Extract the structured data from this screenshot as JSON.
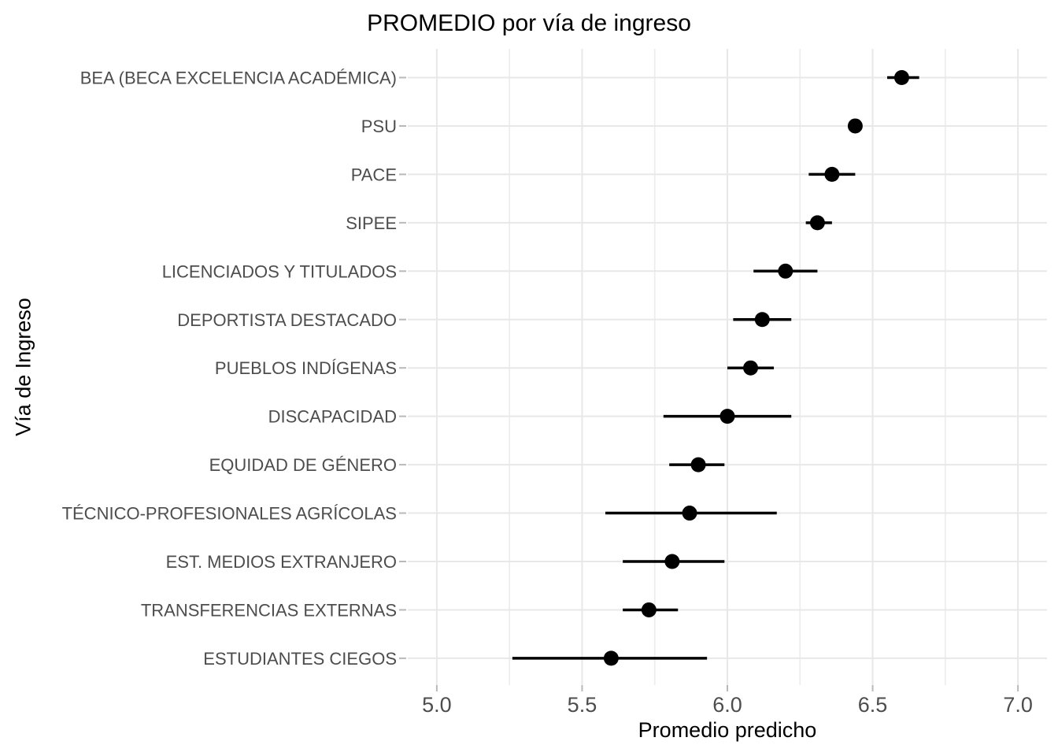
{
  "chart_data": {
    "type": "scatter",
    "subtype": "pointrange-horizontal",
    "title": "PROMEDIO por vía de ingreso",
    "xlabel": "Promedio predicho",
    "ylabel": "Vía de Ingreso",
    "xlim": [
      4.9,
      7.1
    ],
    "grid": true,
    "legend_position": "none",
    "x_ticks": {
      "values": [
        5.0,
        5.5,
        6.0,
        6.5,
        7.0
      ],
      "labels": [
        "5.0",
        "5.5",
        "6.0",
        "6.5",
        "7.0"
      ]
    },
    "x_minor_ticks": [
      5.25,
      5.75,
      6.25,
      6.75
    ],
    "categories": [
      "BEA (BECA EXCELENCIA ACADÉMICA)",
      "PSU",
      "PACE",
      "SIPEE",
      "LICENCIADOS Y TITULADOS",
      "DEPORTISTA DESTACADO",
      "PUEBLOS INDÍGENAS",
      "DISCAPACIDAD",
      "EQUIDAD DE GÉNERO",
      "TÉCNICO-PROFESIONALES AGRÍCOLAS",
      "EST. MEDIOS EXTRANJERO",
      "TRANSFERENCIAS EXTERNAS",
      "ESTUDIANTES CIEGOS"
    ],
    "points": [
      {
        "label": "BEA (BECA EXCELENCIA ACADÉMICA)",
        "value": 6.6,
        "lo": 6.55,
        "hi": 6.66
      },
      {
        "label": "PSU",
        "value": 6.44,
        "lo": 6.42,
        "hi": 6.46
      },
      {
        "label": "PACE",
        "value": 6.36,
        "lo": 6.28,
        "hi": 6.44
      },
      {
        "label": "SIPEE",
        "value": 6.31,
        "lo": 6.27,
        "hi": 6.36
      },
      {
        "label": "LICENCIADOS Y TITULADOS",
        "value": 6.2,
        "lo": 6.09,
        "hi": 6.31
      },
      {
        "label": "DEPORTISTA DESTACADO",
        "value": 6.12,
        "lo": 6.02,
        "hi": 6.22
      },
      {
        "label": "PUEBLOS INDÍGENAS",
        "value": 6.08,
        "lo": 6.0,
        "hi": 6.16
      },
      {
        "label": "DISCAPACIDAD",
        "value": 6.0,
        "lo": 5.78,
        "hi": 6.22
      },
      {
        "label": "EQUIDAD DE GÉNERO",
        "value": 5.9,
        "lo": 5.8,
        "hi": 5.99
      },
      {
        "label": "TÉCNICO-PROFESIONALES AGRÍCOLAS",
        "value": 5.87,
        "lo": 5.58,
        "hi": 6.17
      },
      {
        "label": "EST. MEDIOS EXTRANJERO",
        "value": 5.81,
        "lo": 5.64,
        "hi": 5.99
      },
      {
        "label": "TRANSFERENCIAS EXTERNAS",
        "value": 5.73,
        "lo": 5.64,
        "hi": 5.83
      },
      {
        "label": "ESTUDIANTES CIEGOS",
        "value": 5.6,
        "lo": 5.26,
        "hi": 5.93
      }
    ],
    "colors": {
      "point": "#000000",
      "grid_major": "#E8E8E8",
      "grid_minor": "#EDEDED",
      "tick": "#B9B9B9",
      "axis_text": "#4D4D4D",
      "title_text": "#000000",
      "background": "#FFFFFF"
    }
  }
}
